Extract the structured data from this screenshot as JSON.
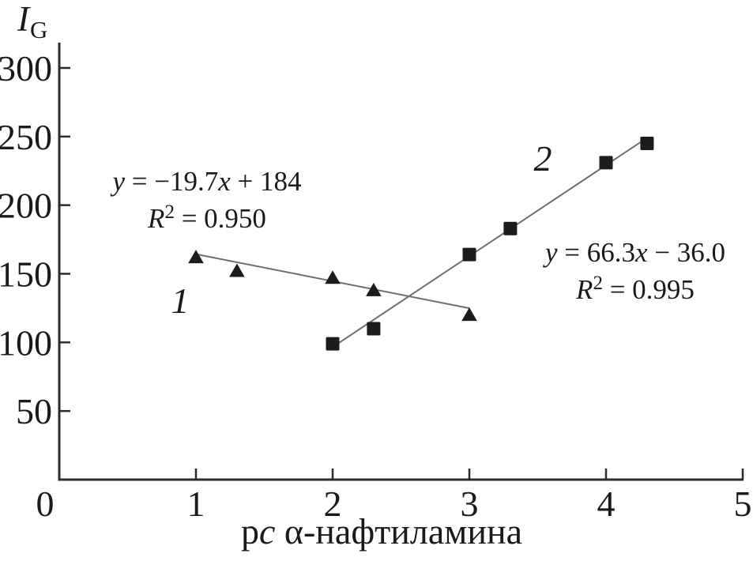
{
  "colors": {
    "background": "#ffffff",
    "text": "#1a1a1a",
    "axis": "#2b2b2b",
    "marker": "#1c1c1c",
    "fit_line": "#6e6e6e"
  },
  "labels": {
    "y_axis": {
      "main": "I",
      "sub": "G"
    },
    "x_axis": {
      "pre": "p",
      "var": "c",
      "post": " α-нафтиламина"
    }
  },
  "series_labels": [
    "1",
    "2"
  ],
  "annotations": {
    "eq1": {
      "line1": {
        "var1": "y",
        "mid": " = −19.7",
        "var2": "x",
        "end": " + 184"
      },
      "line2": {
        "base": "R",
        "sup": "2",
        "rest": " = 0.950"
      }
    },
    "eq2": {
      "line1": {
        "var1": "y",
        "mid": " = 66.3",
        "var2": "x",
        "end": " − 36.0"
      },
      "line2": {
        "base": "R",
        "sup": "2",
        "rest": " = 0.995"
      }
    }
  },
  "chart_data": {
    "type": "scatter",
    "title": "",
    "xlabel": "pc α-нафтиламина",
    "ylabel": "IG",
    "xlim": [
      0,
      5
    ],
    "ylim": [
      0,
      320
    ],
    "x_ticks": [
      0,
      1,
      2,
      3,
      4,
      5
    ],
    "y_ticks": [
      50,
      100,
      150,
      200,
      250,
      300
    ],
    "grid": false,
    "legend": "none",
    "series": [
      {
        "name": "1",
        "marker": "triangle",
        "points": [
          [
            1,
            162
          ],
          [
            1.3,
            152
          ],
          [
            2,
            147
          ],
          [
            2.3,
            138
          ],
          [
            3,
            120
          ]
        ],
        "fit": {
          "equation": "y = −19.7x + 184",
          "slope": -19.7,
          "intercept": 184,
          "r2": 0.95,
          "x_range": [
            1,
            3
          ]
        }
      },
      {
        "name": "2",
        "marker": "square",
        "points": [
          [
            2,
            99
          ],
          [
            2.3,
            110
          ],
          [
            3,
            164
          ],
          [
            3.3,
            183
          ],
          [
            4,
            231
          ],
          [
            4.3,
            245
          ]
        ],
        "fit": {
          "equation": "y = 66.3x − 36.0",
          "slope": 66.3,
          "intercept": -36.0,
          "r2": 0.995,
          "x_range": [
            2,
            4.3
          ]
        }
      }
    ]
  }
}
